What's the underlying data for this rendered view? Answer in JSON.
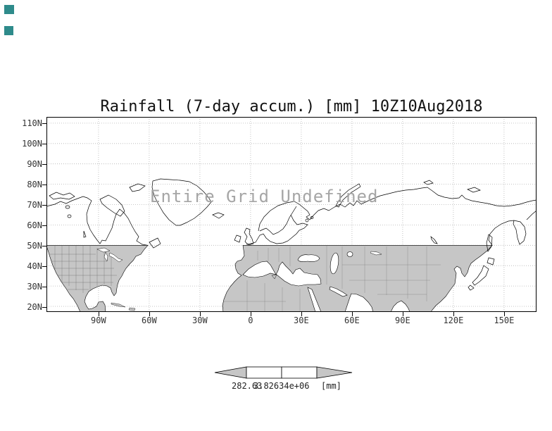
{
  "window": {
    "background": "#ffffff"
  },
  "decor": {
    "square_color": "#2e8b8b"
  },
  "chart": {
    "title": "Rainfall (7-day accum.) [mm] 10Z10Aug2018",
    "overlay_message": "Entire Grid Undefined",
    "y_tick_labels": [
      "110N",
      "100N",
      "90N",
      "80N",
      "70N",
      "60N",
      "50N",
      "40N",
      "30N",
      "20N"
    ],
    "x_tick_labels": [
      "90W",
      "60W",
      "30W",
      "0",
      "30E",
      "60E",
      "90E",
      "120E",
      "150E"
    ],
    "colorbar": {
      "min_label": "282.63",
      "max_label": "3.82634e+06",
      "units_label": "[mm]",
      "fill_color": "#c6c6c6"
    },
    "map": {
      "land_shade_color": "#c6c6c6"
    }
  },
  "chart_data": {
    "type": "heatmap",
    "title": "Rainfall (7-day accum.) [mm] 10Z10Aug2018",
    "variable": "Rainfall (7-day accum.)",
    "units": "mm",
    "valid_time": "10Z10Aug2018",
    "projection": "lat-lon world map (northern hemisphere sector)",
    "lat_ticks_deg_n": [
      110,
      100,
      90,
      80,
      70,
      60,
      50,
      40,
      30,
      20
    ],
    "lon_ticks": [
      "90W",
      "60W",
      "30W",
      "0",
      "30E",
      "60E",
      "90E",
      "120E",
      "150E"
    ],
    "grid": "dotted graticule every 10 deg latitude / 30 deg longitude",
    "colorbar_levels": [
      282.63,
      3826340
    ],
    "colorbar_level_labels": [
      "282.63",
      "3.82634e+06"
    ],
    "legend_position": "bottom-center",
    "values": [],
    "data_status": "Entire Grid Undefined",
    "shaded_region_note": "land areas south of about 50N are shaded gray"
  }
}
